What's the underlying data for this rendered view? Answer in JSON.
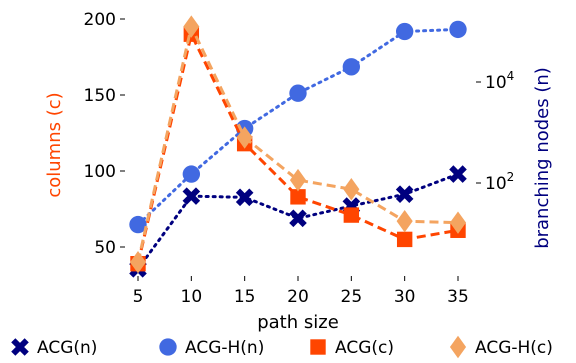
{
  "chart_data": {
    "type": "line",
    "xlabel": "path size",
    "ylabel_left": "columns (c)",
    "ylabel_right": "branching nodes (n)",
    "x": [
      5,
      10,
      15,
      20,
      25,
      30,
      35
    ],
    "xticks": [
      "5",
      "10",
      "15",
      "20",
      "25",
      "30",
      "35"
    ],
    "yticks_left": [
      "50",
      "100",
      "150",
      "200"
    ],
    "yticks_right": [
      {
        "base": "10",
        "exp": "2"
      },
      {
        "base": "10",
        "exp": "4"
      }
    ],
    "ylim_left": [
      35,
      205
    ],
    "ylim_right_log10": [
      0.0,
      5.7
    ],
    "grid": false,
    "legend_position": "bottom",
    "series": [
      {
        "name": "ACG(n)",
        "axis": "right",
        "scale": "log",
        "color": "#00007f",
        "marker": "x",
        "linestyle": "dotted",
        "values": [
          2,
          55,
          52,
          20,
          35,
          60,
          150
        ]
      },
      {
        "name": "ACG-H(n)",
        "axis": "right",
        "scale": "log",
        "color": "#4169e1",
        "marker": "circle",
        "linestyle": "dotted",
        "values": [
          15,
          150,
          1200,
          6000,
          20000,
          100000,
          110000
        ]
      },
      {
        "name": "ACG(c)",
        "axis": "left",
        "scale": "linear",
        "color": "#ff4500",
        "marker": "square",
        "linestyle": "dashed",
        "values": [
          39,
          190,
          118,
          83,
          71,
          55,
          61
        ]
      },
      {
        "name": "ACG-H(c)",
        "axis": "left",
        "scale": "linear",
        "color": "#f4a460",
        "marker": "diamond",
        "linestyle": "dashed",
        "values": [
          40,
          195,
          122,
          94,
          88,
          67,
          66
        ]
      }
    ]
  },
  "colors": {
    "left_axis_title": "#ff4500",
    "right_axis_title": "#00007f"
  }
}
